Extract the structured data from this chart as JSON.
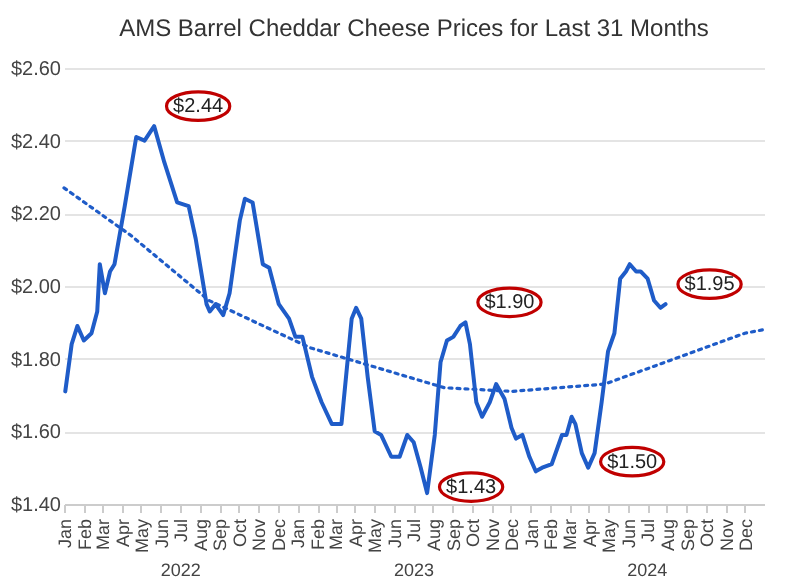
{
  "chart_data": {
    "type": "line",
    "title": "AMS Barrel Cheddar Cheese Prices for Last 31 Months",
    "series": [
      {
        "type": "line",
        "color": "#1f5cc8",
        "line_style": "solid",
        "x": [
          "2022-01-03",
          "2022-01-13",
          "2022-01-22",
          "2022-02-01",
          "2022-02-13",
          "2022-02-22",
          "2022-02-26",
          "2022-03-06",
          "2022-03-14",
          "2022-03-21",
          "2022-04-06",
          "2022-04-24",
          "2022-05-07",
          "2022-05-22",
          "2022-06-07",
          "2022-06-27",
          "2022-07-15",
          "2022-07-26",
          "2022-08-12",
          "2022-08-17",
          "2022-08-26",
          "2022-09-07",
          "2022-09-17",
          "2022-10-03",
          "2022-10-11",
          "2022-10-23",
          "2022-11-08",
          "2022-11-18",
          "2022-12-03",
          "2022-12-19",
          "2022-12-29",
          "2023-01-09",
          "2023-01-24",
          "2023-02-08",
          "2023-02-24",
          "2023-03-11",
          "2023-03-27",
          "2023-04-03",
          "2023-04-11",
          "2023-04-21",
          "2023-05-02",
          "2023-05-12",
          "2023-05-28",
          "2023-06-10",
          "2023-06-22",
          "2023-07-02",
          "2023-07-13",
          "2023-07-23",
          "2023-08-04",
          "2023-08-13",
          "2023-08-23",
          "2023-09-02",
          "2023-09-13",
          "2023-09-21",
          "2023-09-28",
          "2023-10-08",
          "2023-10-17",
          "2023-10-29",
          "2023-11-08",
          "2023-11-21",
          "2023-12-02",
          "2023-12-09",
          "2023-12-19",
          "2023-12-30",
          "2024-01-09",
          "2024-01-19",
          "2024-02-03",
          "2024-02-19",
          "2024-02-26",
          "2024-03-05",
          "2024-03-11",
          "2024-03-21",
          "2024-03-31",
          "2024-04-10",
          "2024-04-21",
          "2024-05-01",
          "2024-05-11",
          "2024-05-20",
          "2024-05-29",
          "2024-06-04",
          "2024-06-14",
          "2024-06-21",
          "2024-07-02",
          "2024-07-12",
          "2024-07-22",
          "2024-07-30"
        ],
        "values": [
          1.71,
          1.84,
          1.89,
          1.85,
          1.87,
          1.93,
          2.06,
          1.98,
          2.04,
          2.06,
          2.22,
          2.41,
          2.4,
          2.44,
          2.34,
          2.23,
          2.22,
          2.13,
          1.95,
          1.93,
          1.95,
          1.92,
          1.98,
          2.18,
          2.24,
          2.23,
          2.06,
          2.05,
          1.95,
          1.91,
          1.86,
          1.86,
          1.75,
          1.68,
          1.62,
          1.62,
          1.91,
          1.94,
          1.91,
          1.75,
          1.6,
          1.59,
          1.53,
          1.53,
          1.59,
          1.57,
          1.5,
          1.43,
          1.59,
          1.79,
          1.85,
          1.86,
          1.89,
          1.9,
          1.84,
          1.68,
          1.64,
          1.68,
          1.73,
          1.69,
          1.61,
          1.58,
          1.59,
          1.53,
          1.49,
          1.5,
          1.51,
          1.59,
          1.59,
          1.64,
          1.62,
          1.54,
          1.5,
          1.54,
          1.68,
          1.82,
          1.87,
          2.02,
          2.04,
          2.06,
          2.04,
          2.04,
          2.02,
          1.96,
          1.94,
          1.95
        ]
      },
      {
        "type": "line",
        "color": "#1f5cc8",
        "line_style": "dotted",
        "x": [
          "2022-01-01",
          "2022-04-15",
          "2022-08-16",
          "2023-01-21",
          "2023-08-19",
          "2023-12-03",
          "2024-04-26",
          "2024-12-01",
          "2024-12-31"
        ],
        "values": [
          2.27,
          2.14,
          1.96,
          1.83,
          1.72,
          1.71,
          1.73,
          1.87,
          1.88
        ]
      }
    ],
    "xlim": [
      "2022-01-01",
      "2024-12-31"
    ],
    "xticks": [
      {
        "value": "2022-01-01",
        "label": "Jan"
      },
      {
        "value": "2022-02-01",
        "label": "Feb"
      },
      {
        "value": "2022-03-01",
        "label": "Mar"
      },
      {
        "value": "2022-04-01",
        "label": "Apr"
      },
      {
        "value": "2022-05-01",
        "label": "May"
      },
      {
        "value": "2022-06-01",
        "label": "Jun"
      },
      {
        "value": "2022-07-01",
        "label": "Jul"
      },
      {
        "value": "2022-08-01",
        "label": "Aug"
      },
      {
        "value": "2022-09-01",
        "label": "Sep"
      },
      {
        "value": "2022-10-01",
        "label": "Oct"
      },
      {
        "value": "2022-11-01",
        "label": "Nov"
      },
      {
        "value": "2022-12-01",
        "label": "Dec"
      },
      {
        "value": "2023-01-01",
        "label": "Jan"
      },
      {
        "value": "2023-02-01",
        "label": "Feb"
      },
      {
        "value": "2023-03-01",
        "label": "Mar"
      },
      {
        "value": "2023-04-01",
        "label": "Apr"
      },
      {
        "value": "2023-05-01",
        "label": "May"
      },
      {
        "value": "2023-06-01",
        "label": "Jun"
      },
      {
        "value": "2023-07-01",
        "label": "Jul"
      },
      {
        "value": "2023-08-01",
        "label": "Aug"
      },
      {
        "value": "2023-09-01",
        "label": "Sep"
      },
      {
        "value": "2023-10-01",
        "label": "Oct"
      },
      {
        "value": "2023-11-01",
        "label": "Nov"
      },
      {
        "value": "2023-12-01",
        "label": "Dec"
      },
      {
        "value": "2024-01-01",
        "label": "Jan"
      },
      {
        "value": "2024-02-01",
        "label": "Feb"
      },
      {
        "value": "2024-03-01",
        "label": "Mar"
      },
      {
        "value": "2024-04-01",
        "label": "Apr"
      },
      {
        "value": "2024-05-01",
        "label": "May"
      },
      {
        "value": "2024-06-01",
        "label": "Jun"
      },
      {
        "value": "2024-07-01",
        "label": "Jul"
      },
      {
        "value": "2024-08-01",
        "label": "Aug"
      },
      {
        "value": "2024-09-01",
        "label": "Sep"
      },
      {
        "value": "2024-10-01",
        "label": "Oct"
      },
      {
        "value": "2024-11-01",
        "label": "Nov"
      },
      {
        "value": "2024-12-01",
        "label": "Dec"
      }
    ],
    "ylim": [
      1.4,
      2.6
    ],
    "yticks": [
      {
        "value": 1.4,
        "label": "$1.40"
      },
      {
        "value": 1.6,
        "label": "$1.60"
      },
      {
        "value": 1.8,
        "label": "$1.80"
      },
      {
        "value": 2.0,
        "label": "$2.00"
      },
      {
        "value": 2.2,
        "label": "$2.20"
      },
      {
        "value": 2.4,
        "label": "$2.40"
      },
      {
        "value": 2.6,
        "label": "$2.60"
      }
    ],
    "grid": "y",
    "annotations": [
      {
        "text": "$2.44",
        "x": "2022-05-22",
        "y": 2.44
      },
      {
        "text": "$1.90",
        "x": "2023-09-21",
        "y": 1.9
      },
      {
        "text": "$1.43",
        "x": "2023-07-23",
        "y": 1.43
      },
      {
        "text": "$1.50",
        "x": "2024-03-31",
        "y": 1.5
      },
      {
        "text": "$1.95",
        "x": "2024-07-30",
        "y": 1.95
      },
      "2022",
      "2023",
      "2024"
    ]
  }
}
